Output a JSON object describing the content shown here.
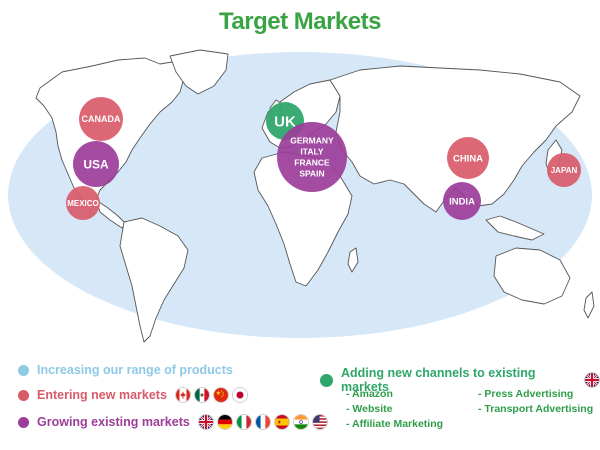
{
  "title": "Target Markets",
  "colors": {
    "title": "#3aa444",
    "ocean": "#d6e7f8",
    "land_outline": "#555555",
    "increasing": "#8ec9e6",
    "entering": "#d95b6a",
    "growing": "#9b3d99",
    "channels": "#2fa66a"
  },
  "markers": [
    {
      "id": "canada",
      "lines": [
        "CANADA"
      ],
      "category": "entering"
    },
    {
      "id": "usa",
      "lines": [
        "USA"
      ],
      "category": "growing"
    },
    {
      "id": "mexico",
      "lines": [
        "MEXICO"
      ],
      "category": "entering"
    },
    {
      "id": "uk",
      "lines": [
        "UK"
      ],
      "category": "channels"
    },
    {
      "id": "europe",
      "lines": [
        "GERMANY",
        "ITALY",
        "FRANCE",
        "SPAIN"
      ],
      "category": "growing"
    },
    {
      "id": "china",
      "lines": [
        "CHINA"
      ],
      "category": "entering"
    },
    {
      "id": "india",
      "lines": [
        "INDIA"
      ],
      "category": "growing"
    },
    {
      "id": "japan",
      "lines": [
        "JAPAN"
      ],
      "category": "entering"
    }
  ],
  "legend": {
    "increasing": {
      "label": "Increasing our range of products"
    },
    "entering": {
      "label": "Entering new markets",
      "flags": [
        "canada-flag",
        "mexico-flag",
        "china-flag",
        "japan-flag"
      ]
    },
    "growing": {
      "label": "Growing existing markets",
      "flags": [
        "uk-flag",
        "germany-flag",
        "italy-flag",
        "france-flag",
        "spain-flag",
        "india-flag",
        "usa-flag"
      ]
    },
    "channels": {
      "label": "Adding new channels to existing markets",
      "flag": "uk-flag",
      "items_left": [
        "- Amazon",
        "- Website",
        "- Affiliate Marketing"
      ],
      "items_right": [
        "- Press Advertising",
        "- Transport Advertising"
      ]
    }
  }
}
